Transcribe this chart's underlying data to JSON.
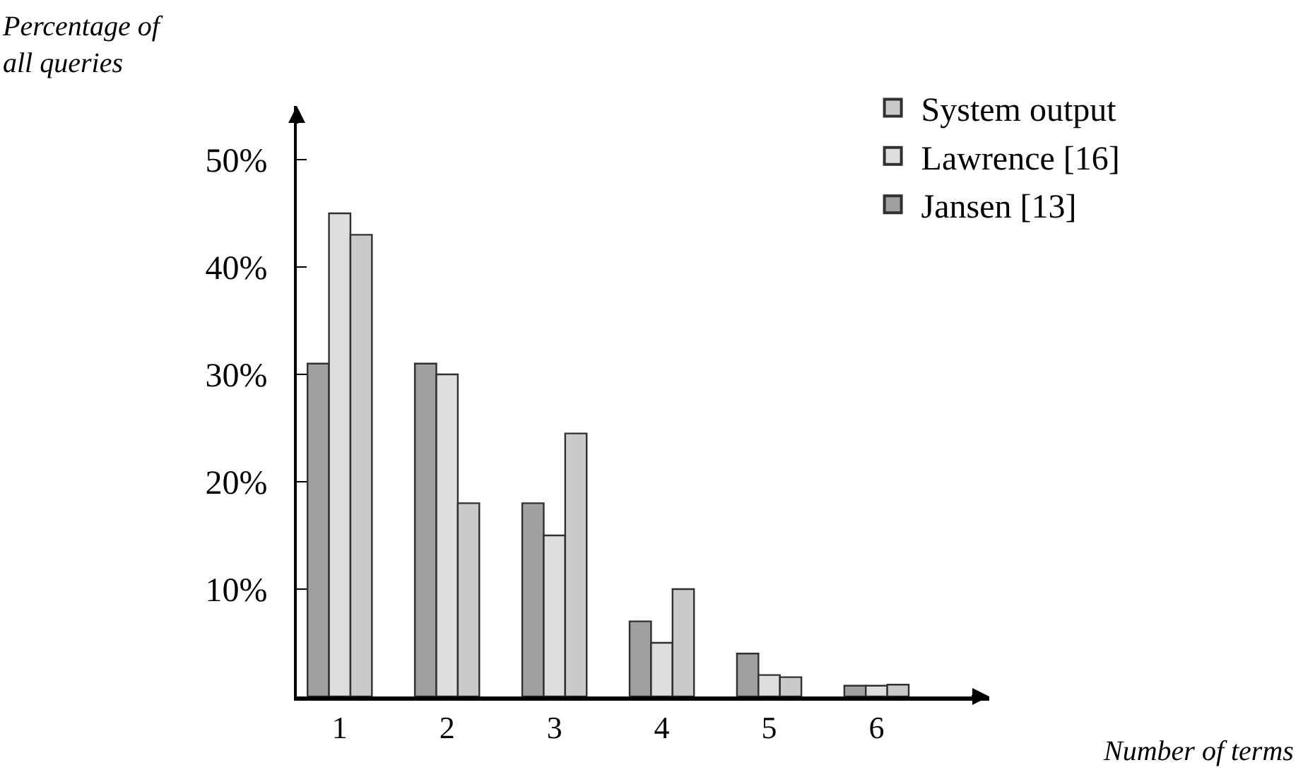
{
  "chart_data": {
    "type": "bar",
    "xlabel": "Number of terms",
    "ylabel": "Percentage of all queries",
    "categories": [
      "1",
      "2",
      "3",
      "4",
      "5",
      "6"
    ],
    "series": [
      {
        "name": "Jansen [13]",
        "color": "#a0a0a0",
        "values": [
          31,
          31,
          18,
          7,
          4,
          1
        ]
      },
      {
        "name": "Lawrence [16]",
        "color": "#dedede",
        "values": [
          45,
          30,
          15,
          5,
          2,
          1
        ]
      },
      {
        "name": "System output",
        "color": "#cacaca",
        "values": [
          43,
          18,
          24.5,
          10,
          1.8,
          1.1
        ]
      }
    ],
    "ylim": [
      0,
      55
    ],
    "yticks": [
      {
        "value": 10,
        "label": "10%"
      },
      {
        "value": 20,
        "label": "20%"
      },
      {
        "value": 30,
        "label": "30%"
      },
      {
        "value": 40,
        "label": "40%"
      },
      {
        "value": 50,
        "label": "50%"
      }
    ],
    "legend": "top right"
  }
}
